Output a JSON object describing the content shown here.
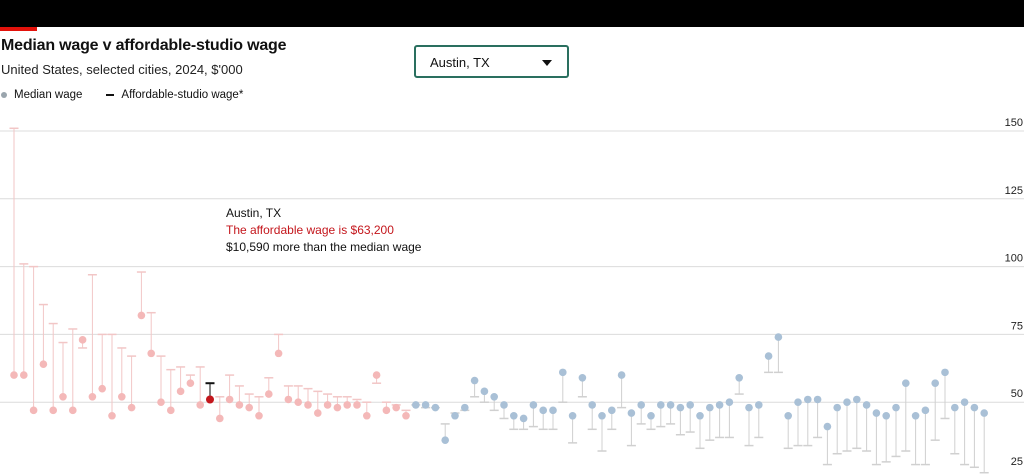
{
  "header": {
    "title": "Median wage v affordable-studio wage",
    "subtitle": "United States, selected cities, 2024, $'000"
  },
  "legend": {
    "median_label": "Median wage",
    "affordable_label": "Affordable-studio wage*"
  },
  "city_selector": {
    "selected": "Austin, TX",
    "icon": "chevron-down-icon"
  },
  "annotation": {
    "city": "Austin, TX",
    "affordable_text": "The affordable wage is $63,200",
    "difference_text": "$10,590 more than the median wage"
  },
  "colors": {
    "red_points": "#f4b8b8",
    "red_lines": "#f2c6c6",
    "blue_points": "#a9c0d6",
    "blue_lines": "#d0d0d0",
    "highlight": "#c4161c",
    "gridline": "#dcdcdc"
  },
  "chart_data": {
    "type": "dot-range",
    "title": "Median wage v affordable-studio wage",
    "subtitle": "United States, selected cities, 2024, $'000",
    "ylim": [
      25,
      150
    ],
    "yticks": [
      25,
      50,
      75,
      100,
      125,
      150
    ],
    "grid": true,
    "y_axis_side": "right",
    "highlighted": "Austin, TX",
    "series": [
      {
        "name": "Median wage",
        "values": [
          60,
          60,
          47,
          64,
          47,
          52,
          47,
          73,
          52,
          55,
          45,
          52,
          48,
          82,
          68,
          50,
          47,
          54,
          57,
          49,
          51,
          44,
          51,
          49,
          48,
          45,
          53,
          68,
          51,
          50,
          49,
          46,
          49,
          48,
          49,
          49,
          45,
          60,
          47,
          48,
          45,
          49,
          49,
          48,
          36,
          45,
          48,
          58,
          54,
          52,
          49,
          45,
          44,
          49,
          47,
          47,
          61,
          45,
          59,
          49,
          45,
          47,
          60,
          46,
          49,
          45,
          49,
          49,
          48,
          49,
          45,
          48,
          49,
          50,
          59,
          48,
          49,
          67,
          74,
          45,
          50,
          51,
          51,
          41,
          48,
          50,
          51,
          49,
          46,
          45,
          48,
          57,
          45,
          47,
          57,
          61,
          48,
          50,
          48,
          46
        ]
      },
      {
        "name": "Affordable-studio wage*",
        "values": [
          151,
          101,
          100,
          86,
          79,
          72,
          77,
          70,
          97,
          75,
          75,
          70,
          67,
          98,
          83,
          67,
          62,
          63,
          60,
          63,
          57,
          52,
          60,
          56,
          53,
          52,
          59,
          75,
          56,
          56,
          55,
          54,
          53,
          52,
          52,
          51,
          50,
          57,
          50,
          49,
          47,
          49,
          48,
          48,
          42,
          46,
          47,
          52,
          50,
          47,
          44,
          40,
          40,
          41,
          40,
          40,
          50,
          35,
          52,
          40,
          32,
          40,
          48,
          34,
          42,
          40,
          41,
          42,
          38,
          39,
          33,
          36,
          37,
          37,
          53,
          34,
          37,
          61,
          61,
          33,
          34,
          34,
          37,
          27,
          31,
          32,
          33,
          32,
          27,
          28,
          30,
          32,
          27,
          27,
          36,
          44,
          31,
          27,
          26,
          24
        ]
      }
    ]
  }
}
